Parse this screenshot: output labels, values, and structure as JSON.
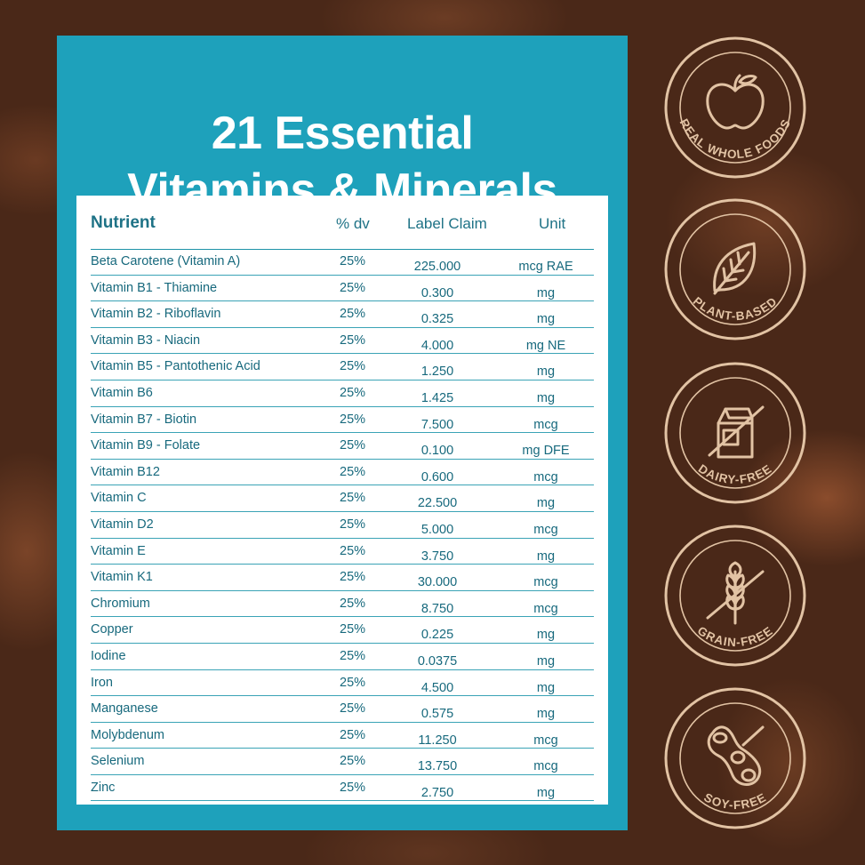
{
  "title_line1": "21 Essential",
  "title_line2": "Vitamins & Minerals",
  "table": {
    "headers": {
      "nutrient": "Nutrient",
      "dv": "% dv",
      "claim": "Label Claim",
      "unit": "Unit"
    },
    "rows": [
      {
        "name": "Beta Carotene (Vitamin A)",
        "dv": "25%",
        "claim": "225.000",
        "unit": "mcg RAE"
      },
      {
        "name": "Vitamin B1 - Thiamine",
        "dv": "25%",
        "claim": "0.300",
        "unit": "mg"
      },
      {
        "name": "Vitamin B2 - Riboflavin",
        "dv": "25%",
        "claim": "0.325",
        "unit": "mg"
      },
      {
        "name": "Vitamin B3 - Niacin",
        "dv": "25%",
        "claim": "4.000",
        "unit": "mg NE"
      },
      {
        "name": "Vitamin B5 - Pantothenic Acid",
        "dv": "25%",
        "claim": "1.250",
        "unit": "mg"
      },
      {
        "name": "Vitamin B6",
        "dv": "25%",
        "claim": "1.425",
        "unit": "mg"
      },
      {
        "name": "Vitamin B7 - Biotin",
        "dv": "25%",
        "claim": "7.500",
        "unit": "mcg"
      },
      {
        "name": "Vitamin B9 - Folate",
        "dv": "25%",
        "claim": "0.100",
        "unit": "mg DFE"
      },
      {
        "name": "Vitamin B12",
        "dv": "25%",
        "claim": "0.600",
        "unit": "mcg"
      },
      {
        "name": "Vitamin C",
        "dv": "25%",
        "claim": "22.500",
        "unit": "mg"
      },
      {
        "name": "Vitamin D2",
        "dv": "25%",
        "claim": "5.000",
        "unit": "mcg"
      },
      {
        "name": "Vitamin E",
        "dv": "25%",
        "claim": "3.750",
        "unit": "mg"
      },
      {
        "name": "Vitamin K1",
        "dv": "25%",
        "claim": "30.000",
        "unit": "mcg"
      },
      {
        "name": "Chromium",
        "dv": "25%",
        "claim": "8.750",
        "unit": "mcg"
      },
      {
        "name": "Copper",
        "dv": "25%",
        "claim": "0.225",
        "unit": "mg"
      },
      {
        "name": "Iodine",
        "dv": "25%",
        "claim": "0.0375",
        "unit": "mg"
      },
      {
        "name": "Iron",
        "dv": "25%",
        "claim": "4.500",
        "unit": "mg"
      },
      {
        "name": "Manganese",
        "dv": "25%",
        "claim": "0.575",
        "unit": "mg"
      },
      {
        "name": "Molybdenum",
        "dv": "25%",
        "claim": "11.250",
        "unit": "mcg"
      },
      {
        "name": "Selenium",
        "dv": "25%",
        "claim": "13.750",
        "unit": "mcg"
      },
      {
        "name": "Zinc",
        "dv": "25%",
        "claim": "2.750",
        "unit": "mg"
      }
    ]
  },
  "badges": [
    {
      "label": "REAL WHOLE FOODS",
      "icon": "apple-icon"
    },
    {
      "label": "PLANT-BASED",
      "icon": "leaf-icon"
    },
    {
      "label": "DAIRY-FREE",
      "icon": "milk-carton-icon"
    },
    {
      "label": "GRAIN-FREE",
      "icon": "wheat-icon"
    },
    {
      "label": "SOY-FREE",
      "icon": "soybean-icon"
    }
  ],
  "colors": {
    "panel": "#1ea1bb",
    "table_text": "#17697d",
    "badge_line": "#e2c3a4",
    "background": "#4a2818"
  }
}
